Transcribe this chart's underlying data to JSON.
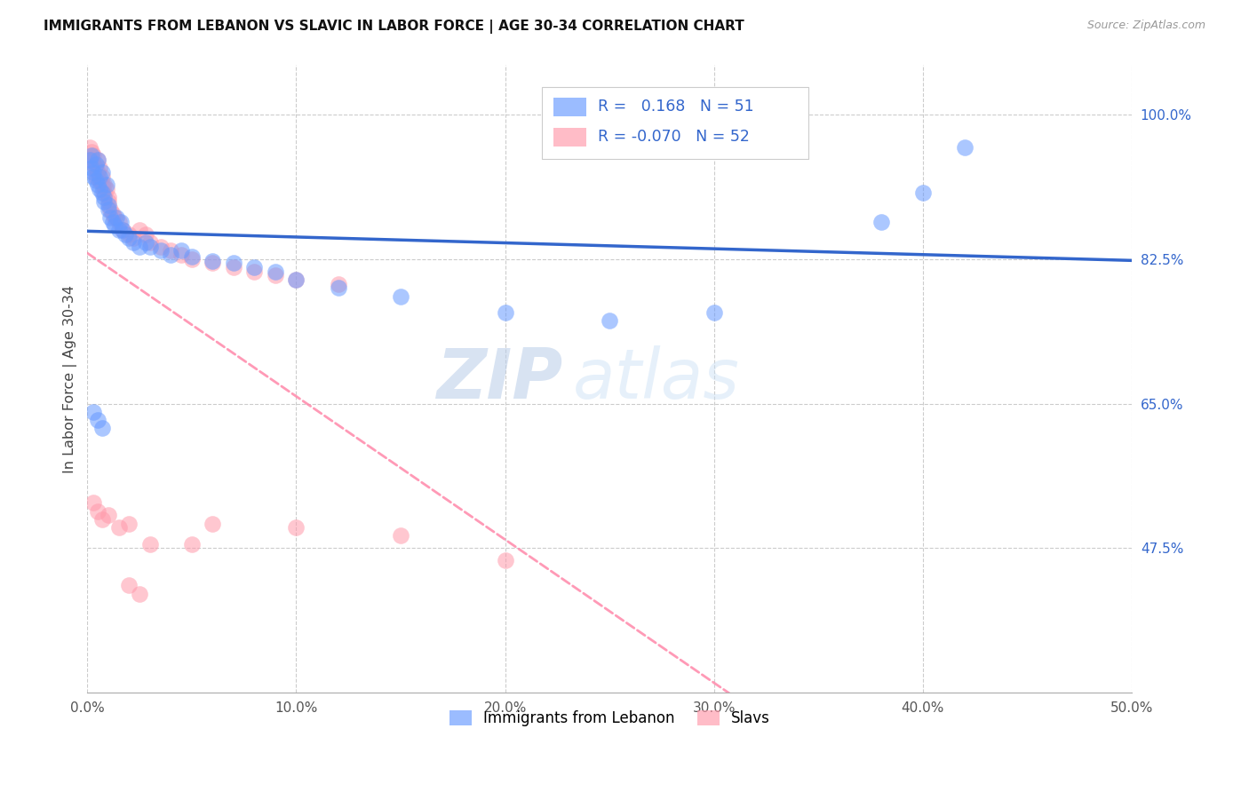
{
  "title": "IMMIGRANTS FROM LEBANON VS SLAVIC IN LABOR FORCE | AGE 30-34 CORRELATION CHART",
  "source": "Source: ZipAtlas.com",
  "ylabel": "In Labor Force | Age 30-34",
  "x_min": 0.0,
  "x_max": 0.5,
  "y_min": 0.3,
  "y_max": 1.06,
  "x_tick_labels": [
    "0.0%",
    "10.0%",
    "20.0%",
    "30.0%",
    "40.0%",
    "50.0%"
  ],
  "x_tick_vals": [
    0.0,
    0.1,
    0.2,
    0.3,
    0.4,
    0.5
  ],
  "y_tick_labels": [
    "47.5%",
    "65.0%",
    "82.5%",
    "100.0%"
  ],
  "y_tick_vals": [
    0.475,
    0.65,
    0.825,
    1.0
  ],
  "grid_color": "#cccccc",
  "blue_color": "#6699ff",
  "pink_color": "#ff99aa",
  "blue_line_color": "#3366cc",
  "pink_line_color": "#ff88aa",
  "R_lebanon": 0.168,
  "N_lebanon": 51,
  "R_slavic": -0.07,
  "N_slavic": 52,
  "legend_R_color": "#3344bb",
  "watermark_zip": "ZIP",
  "watermark_atlas": "atlas",
  "lebanon_x": [
    0.001,
    0.002,
    0.002,
    0.003,
    0.003,
    0.004,
    0.004,
    0.005,
    0.005,
    0.006,
    0.006,
    0.007,
    0.007,
    0.008,
    0.008,
    0.009,
    0.01,
    0.01,
    0.011,
    0.012,
    0.013,
    0.014,
    0.015,
    0.016,
    0.017,
    0.018,
    0.02,
    0.022,
    0.025,
    0.028,
    0.03,
    0.035,
    0.04,
    0.045,
    0.05,
    0.06,
    0.07,
    0.08,
    0.09,
    0.1,
    0.12,
    0.15,
    0.2,
    0.25,
    0.3,
    0.38,
    0.42,
    0.003,
    0.005,
    0.007,
    0.4
  ],
  "lebanon_y": [
    0.945,
    0.935,
    0.95,
    0.93,
    0.925,
    0.94,
    0.92,
    0.915,
    0.945,
    0.91,
    0.925,
    0.905,
    0.93,
    0.895,
    0.9,
    0.915,
    0.89,
    0.885,
    0.875,
    0.87,
    0.865,
    0.875,
    0.86,
    0.87,
    0.86,
    0.855,
    0.85,
    0.845,
    0.84,
    0.845,
    0.84,
    0.835,
    0.83,
    0.835,
    0.828,
    0.822,
    0.82,
    0.815,
    0.81,
    0.8,
    0.79,
    0.78,
    0.76,
    0.75,
    0.76,
    0.87,
    0.96,
    0.64,
    0.63,
    0.62,
    0.905
  ],
  "slavic_x": [
    0.001,
    0.002,
    0.002,
    0.003,
    0.003,
    0.004,
    0.004,
    0.005,
    0.005,
    0.006,
    0.006,
    0.007,
    0.007,
    0.008,
    0.008,
    0.009,
    0.01,
    0.01,
    0.011,
    0.012,
    0.013,
    0.015,
    0.017,
    0.02,
    0.022,
    0.025,
    0.028,
    0.03,
    0.035,
    0.04,
    0.045,
    0.05,
    0.06,
    0.07,
    0.08,
    0.09,
    0.1,
    0.12,
    0.003,
    0.005,
    0.007,
    0.01,
    0.015,
    0.02,
    0.06,
    0.1,
    0.15,
    0.05,
    0.03,
    0.02,
    0.025,
    0.2
  ],
  "slavic_y": [
    0.96,
    0.955,
    0.945,
    0.94,
    0.95,
    0.935,
    0.925,
    0.93,
    0.945,
    0.92,
    0.935,
    0.915,
    0.925,
    0.905,
    0.915,
    0.91,
    0.9,
    0.895,
    0.885,
    0.88,
    0.875,
    0.87,
    0.86,
    0.855,
    0.85,
    0.86,
    0.855,
    0.845,
    0.84,
    0.835,
    0.83,
    0.825,
    0.82,
    0.815,
    0.81,
    0.805,
    0.8,
    0.795,
    0.53,
    0.52,
    0.51,
    0.515,
    0.5,
    0.505,
    0.505,
    0.5,
    0.49,
    0.48,
    0.48,
    0.43,
    0.42,
    0.46
  ]
}
